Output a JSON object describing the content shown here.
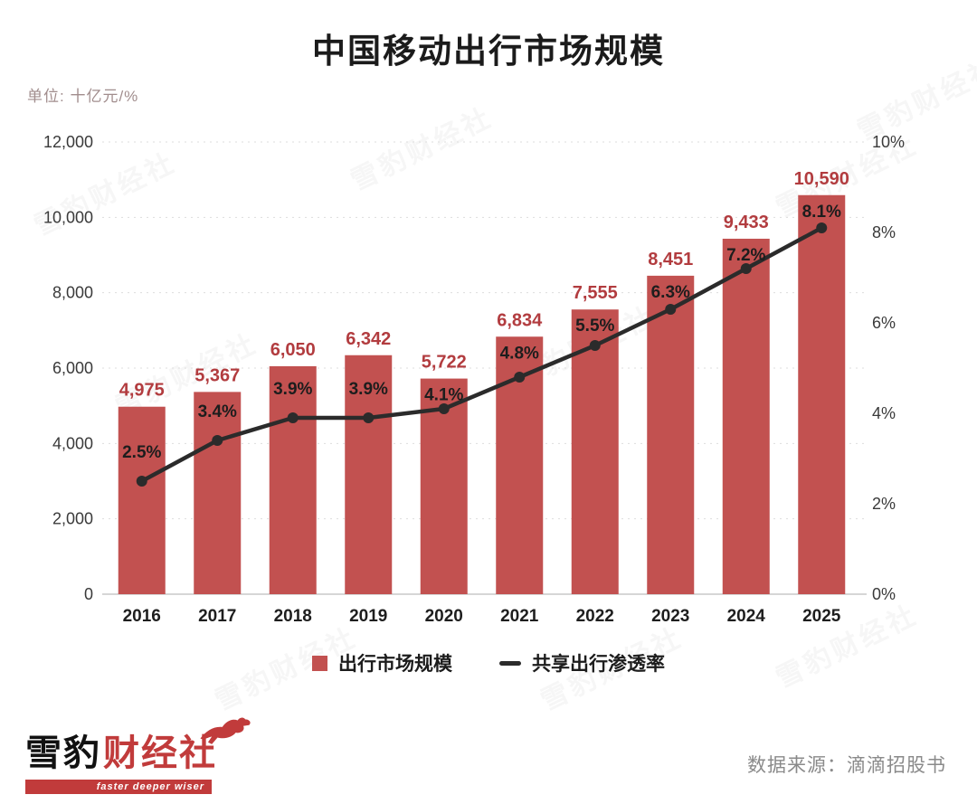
{
  "meta": {
    "title": "中国移动出行市场规模",
    "unit_label": "单位: 十亿元/%",
    "watermark_text": "雪豹财经社"
  },
  "chart_data": {
    "type": "bar+line combo",
    "categories": [
      "2016",
      "2017",
      "2018",
      "2019",
      "2020",
      "2021",
      "2022",
      "2023",
      "2024",
      "2025"
    ],
    "series": [
      {
        "name": "出行市场规模",
        "type": "bar",
        "axis": "left",
        "color": "#c25150",
        "label_color": "#b23c3f",
        "values": [
          4975,
          5367,
          6050,
          6342,
          5722,
          6834,
          7555,
          8451,
          9433,
          10590
        ],
        "labels": [
          "4,975",
          "5,367",
          "6,050",
          "6,342",
          "5,722",
          "6,834",
          "7,555",
          "8,451",
          "9,433",
          "10,590"
        ]
      },
      {
        "name": "共享出行渗透率",
        "type": "line",
        "axis": "right",
        "color": "#2b2b2b",
        "label_color": "#1d1d1d",
        "values": [
          2.5,
          3.4,
          3.9,
          3.9,
          4.1,
          4.8,
          5.5,
          6.3,
          7.2,
          8.1
        ],
        "labels": [
          "2.5%",
          "3.4%",
          "3.9%",
          "3.9%",
          "4.1%",
          "4.8%",
          "5.5%",
          "6.3%",
          "7.2%",
          "8.1%"
        ]
      }
    ],
    "left_axis": {
      "min": 0,
      "max": 12000,
      "tick_values": [
        12000,
        10000,
        8000,
        6000,
        4000,
        2000,
        0
      ],
      "tick_labels": [
        "12,000",
        "10,000",
        "8,000",
        "6,000",
        "4,000",
        "2,000",
        "0"
      ]
    },
    "right_axis": {
      "min": 0,
      "max": 10,
      "tick_values": [
        10,
        8,
        6,
        4,
        2,
        0
      ],
      "tick_labels": [
        "10%",
        "8%",
        "6%",
        "4%",
        "2%",
        "0%"
      ]
    },
    "legend": [
      {
        "label": "出行市场规模",
        "swatch": "square"
      },
      {
        "label": "共享出行渗透率",
        "swatch": "dash"
      }
    ],
    "grid": "dashed horizontal",
    "legend_position": "bottom"
  },
  "footer": {
    "logo": {
      "black_text": "雪豹",
      "red_text": "财经社",
      "tagline": "faster deeper wiser"
    },
    "source": "数据来源：滴滴招股书"
  }
}
